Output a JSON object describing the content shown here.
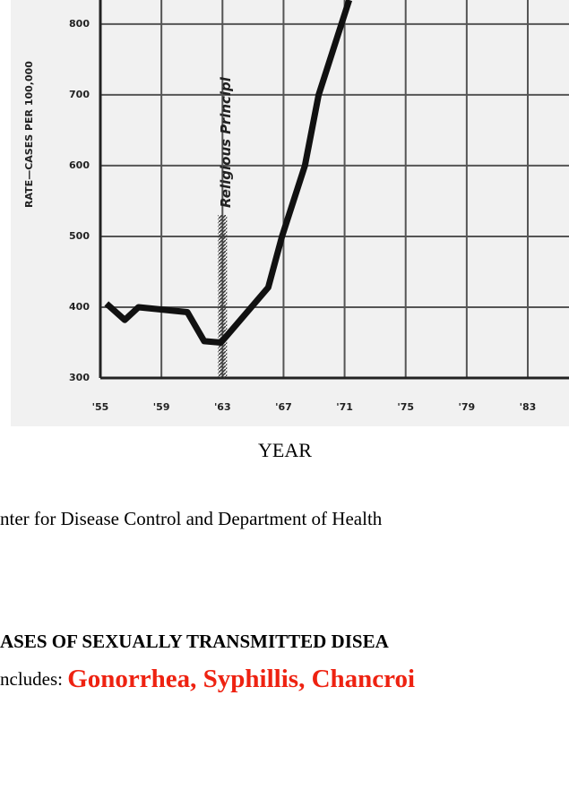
{
  "chart_data": {
    "type": "line",
    "ylabel": "RATE—CASES PER 100,000",
    "xlabel": "YEAR",
    "annotation": {
      "text": "Religious Principl",
      "x": 63
    },
    "series": [
      {
        "color": "#111111",
        "x": [
          55.4,
          56.6,
          57.5,
          60.7,
          61.8,
          62.9,
          66,
          66.9,
          68.4,
          69.3,
          71.3
        ],
        "values": [
          405,
          382,
          400,
          393,
          352,
          350,
          428,
          500,
          600,
          700,
          834
        ]
      }
    ],
    "xlim": [
      55,
      85.7
    ],
    "ylim": [
      300,
      834
    ],
    "xticks": [
      {
        "value": 55,
        "label": "'55"
      },
      {
        "value": 59,
        "label": "'59"
      },
      {
        "value": 63,
        "label": "'63"
      },
      {
        "value": 67,
        "label": "'67"
      },
      {
        "value": 71,
        "label": "'71"
      },
      {
        "value": 75,
        "label": "'75"
      },
      {
        "value": 79,
        "label": "'79"
      },
      {
        "value": 83,
        "label": "'83"
      }
    ],
    "yticks": [
      300,
      400,
      500,
      600,
      700,
      800
    ],
    "grid": true
  },
  "page": {
    "caption": "nter for Disease Control and Department of Health",
    "heading": "ASES OF SEXUALLY TRANSMITTED DISEA",
    "includes_label": "ncludes: ",
    "includes_list": "Gonorrhea, Syphillis, Chancroi"
  }
}
